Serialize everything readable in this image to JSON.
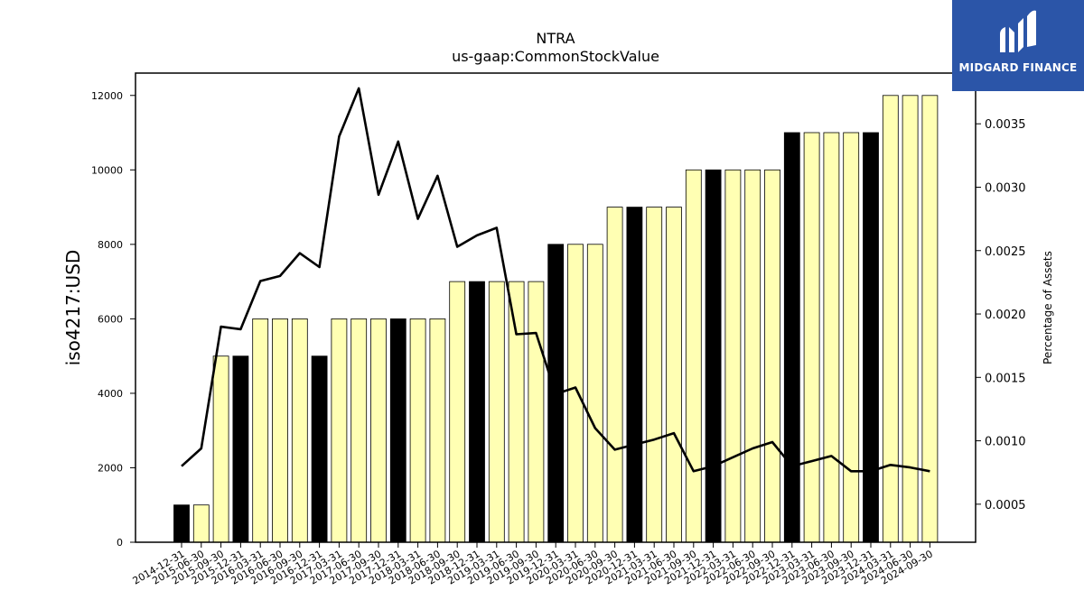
{
  "brand": {
    "name": "MIDGARD FINANCE",
    "color": "#2b55a8"
  },
  "chart_data": {
    "type": "bar",
    "title": "NTRA",
    "subtitle": "us-gaap:CommonStockValue",
    "ylabel": "iso4217:USD",
    "y2label": "Percentage of Assets",
    "ylim": [
      0,
      12600
    ],
    "y2lim": [
      0.0002,
      0.0039
    ],
    "yticks": [
      0,
      2000,
      4000,
      6000,
      8000,
      10000,
      12000
    ],
    "y2ticks": [
      0.0005,
      0.001,
      0.0015,
      0.002,
      0.0025,
      0.003,
      0.0035
    ],
    "y2tick_labels": [
      "0.0005",
      "0.0010",
      "0.0015",
      "0.0020",
      "0.0025",
      "0.0030",
      "0.0035"
    ],
    "bar_colors": {
      "annual": "#000000",
      "quarterly": "#ffffb3"
    },
    "line_color": "#000000",
    "categories": [
      "2014-12-31",
      "2015-06-30",
      "2015-09-30",
      "2015-12-31",
      "2016-03-31",
      "2016-06-30",
      "2016-09-30",
      "2016-12-31",
      "2017-03-31",
      "2017-06-30",
      "2017-09-30",
      "2017-12-31",
      "2018-03-31",
      "2018-06-30",
      "2018-09-30",
      "2018-12-31",
      "2019-03-31",
      "2019-06-30",
      "2019-09-30",
      "2019-12-31",
      "2020-03-31",
      "2020-06-30",
      "2020-09-30",
      "2020-12-31",
      "2021-03-31",
      "2021-06-30",
      "2021-09-30",
      "2021-12-31",
      "2022-03-31",
      "2022-06-30",
      "2022-09-30",
      "2022-12-31",
      "2023-03-31",
      "2023-06-30",
      "2023-09-30",
      "2023-12-31",
      "2024-03-31",
      "2024-06-30",
      "2024-09-30"
    ],
    "values": [
      1000,
      1000,
      5000,
      5000,
      6000,
      6000,
      6000,
      5000,
      6000,
      6000,
      6000,
      6000,
      6000,
      6000,
      7000,
      7000,
      7000,
      7000,
      7000,
      8000,
      8000,
      8000,
      9000,
      9000,
      9000,
      9000,
      10000,
      10000,
      10000,
      10000,
      10000,
      11000,
      11000,
      11000,
      11000,
      11000,
      12000,
      12000,
      12000
    ],
    "annual": [
      true,
      false,
      false,
      true,
      false,
      false,
      false,
      true,
      false,
      false,
      false,
      true,
      false,
      false,
      false,
      true,
      false,
      false,
      false,
      true,
      false,
      false,
      false,
      true,
      false,
      false,
      false,
      true,
      false,
      false,
      false,
      true,
      false,
      false,
      false,
      true,
      false,
      false,
      false
    ],
    "series": [
      {
        "values": [
          0.0008,
          0.00094,
          0.0019,
          0.00188,
          0.00226,
          0.0023,
          0.00248,
          0.00237,
          0.0034,
          0.00378,
          0.00294,
          0.00336,
          0.00275,
          0.00309,
          0.00253,
          0.00262,
          0.00268,
          0.00184,
          0.00185,
          0.00137,
          0.00142,
          0.0011,
          0.00093,
          0.00097,
          0.00101,
          0.00106,
          0.00076,
          0.0008,
          0.00087,
          0.00094,
          0.00099,
          0.0008,
          0.00084,
          0.00088,
          0.00076,
          0.00076,
          0.00081,
          0.00079,
          0.00076
        ]
      }
    ],
    "grid": false,
    "legend": "none"
  }
}
